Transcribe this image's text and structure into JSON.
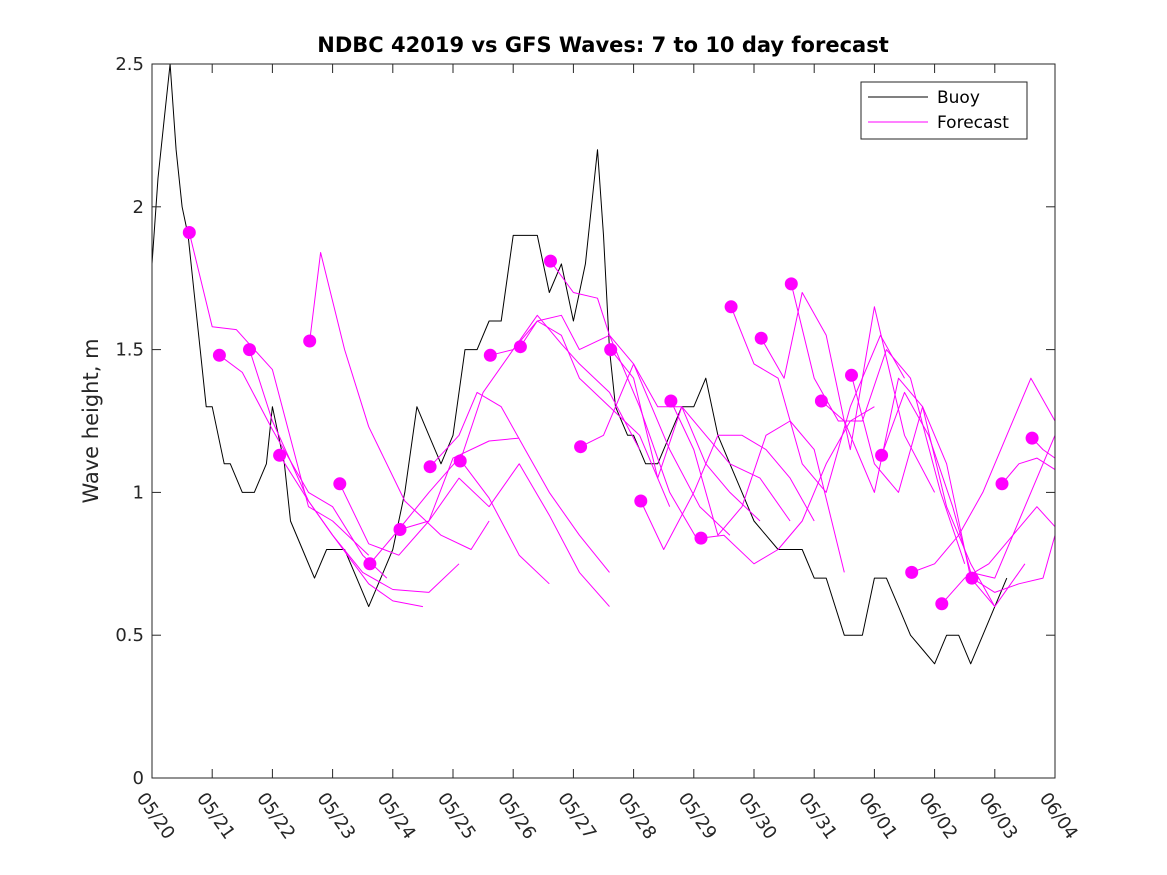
{
  "chart_data": {
    "type": "line",
    "title": "NDBC 42019 vs GFS Waves: 7 to 10 day forecast",
    "ylabel": "Wave height, m",
    "xlabel": "",
    "ylim": [
      0,
      2.5
    ],
    "xlim": [
      0,
      15
    ],
    "x_unit": "days since 05/20",
    "yticks": [
      0,
      0.5,
      1,
      1.5,
      2,
      2.5
    ],
    "ytick_labels": [
      "0",
      "0.5",
      "1",
      "1.5",
      "2",
      "2.5"
    ],
    "xticks": [
      0,
      1,
      2,
      3,
      4,
      5,
      6,
      7,
      8,
      9,
      10,
      11,
      12,
      13,
      14,
      15
    ],
    "xtick_labels": [
      "05/20",
      "05/21",
      "05/22",
      "05/23",
      "05/24",
      "05/25",
      "05/26",
      "05/27",
      "05/28",
      "05/29",
      "05/30",
      "05/31",
      "06/01",
      "06/02",
      "06/03",
      "06/04"
    ],
    "grid": false,
    "legend": {
      "placement": "top-right",
      "entries": [
        "Buoy",
        "Forecast"
      ]
    },
    "colors": {
      "buoy": "#000000",
      "forecast": "#ff00ff"
    },
    "series": [
      {
        "name": "Buoy",
        "x": [
          0,
          0.1,
          0.2,
          0.3,
          0.4,
          0.5,
          0.6,
          0.7,
          0.8,
          0.9,
          1.0,
          1.1,
          1.2,
          1.3,
          1.5,
          1.7,
          1.9,
          2.0,
          2.2,
          2.3,
          2.5,
          2.7,
          2.9,
          3.0,
          3.2,
          3.4,
          3.6,
          3.8,
          4.0,
          4.2,
          4.4,
          4.6,
          4.8,
          5.0,
          5.2,
          5.4,
          5.6,
          5.8,
          6.0,
          6.2,
          6.4,
          6.6,
          6.8,
          7.0,
          7.2,
          7.4,
          7.5,
          7.6,
          7.7,
          7.9,
          8.0,
          8.2,
          8.4,
          8.6,
          8.8,
          9.0,
          9.2,
          9.4,
          9.6,
          9.8,
          10.0,
          10.2,
          10.4,
          10.6,
          10.8,
          11.0,
          11.2,
          11.5,
          11.8,
          12.0,
          12.2,
          12.4,
          12.6,
          12.8,
          13.0,
          13.2,
          13.4,
          13.6,
          13.8,
          14.0,
          14.2
        ],
        "values": [
          1.8,
          2.1,
          2.3,
          2.5,
          2.2,
          2.0,
          1.9,
          1.7,
          1.5,
          1.3,
          1.3,
          1.2,
          1.1,
          1.1,
          1.0,
          1.0,
          1.1,
          1.3,
          1.1,
          0.9,
          0.8,
          0.7,
          0.8,
          0.8,
          0.8,
          0.7,
          0.6,
          0.7,
          0.8,
          1.0,
          1.3,
          1.2,
          1.1,
          1.2,
          1.5,
          1.5,
          1.6,
          1.6,
          1.9,
          1.9,
          1.9,
          1.7,
          1.8,
          1.6,
          1.8,
          2.2,
          1.9,
          1.5,
          1.3,
          1.2,
          1.2,
          1.1,
          1.1,
          1.2,
          1.3,
          1.3,
          1.4,
          1.2,
          1.1,
          1.0,
          0.9,
          0.85,
          0.8,
          0.8,
          0.8,
          0.7,
          0.7,
          0.5,
          0.5,
          0.7,
          0.7,
          0.6,
          0.5,
          0.45,
          0.4,
          0.5,
          0.5,
          0.4,
          0.5,
          0.6,
          0.7
        ]
      },
      {
        "name": "Forecast",
        "x": [
          0.62,
          1.0,
          1.4,
          2.0,
          2.6,
          3.0,
          3.6
        ],
        "values": [
          1.91,
          1.58,
          1.57,
          1.43,
          0.95,
          0.9,
          0.78
        ]
      },
      {
        "name": "Forecast",
        "x": [
          1.12,
          1.5,
          2.0,
          2.6,
          3.0,
          3.5,
          3.9
        ],
        "values": [
          1.48,
          1.42,
          1.22,
          1.0,
          0.95,
          0.78,
          0.7
        ]
      },
      {
        "name": "Forecast",
        "x": [
          1.62,
          2.0,
          2.6,
          3.0,
          3.6,
          4.0,
          4.5
        ],
        "values": [
          1.5,
          1.25,
          0.97,
          0.85,
          0.68,
          0.62,
          0.6
        ]
      },
      {
        "name": "Forecast",
        "x": [
          2.12,
          2.6,
          3.0,
          3.5,
          4.0,
          4.6,
          5.1
        ],
        "values": [
          1.13,
          0.97,
          0.85,
          0.72,
          0.66,
          0.65,
          0.75
        ]
      },
      {
        "name": "Forecast",
        "x": [
          2.62,
          2.8,
          3.2,
          3.6,
          4.2,
          4.8,
          5.3,
          5.6
        ],
        "values": [
          1.53,
          1.84,
          1.5,
          1.23,
          0.97,
          0.85,
          0.8,
          0.9
        ]
      },
      {
        "name": "Forecast",
        "x": [
          3.12,
          3.6,
          4.1,
          4.6,
          5.0,
          5.6,
          6.1
        ],
        "values": [
          1.03,
          0.82,
          0.78,
          0.9,
          1.12,
          1.18,
          1.19
        ]
      },
      {
        "name": "Forecast",
        "x": [
          3.62,
          4.1,
          4.6,
          5.1,
          5.6,
          6.1,
          6.6
        ],
        "values": [
          0.75,
          0.87,
          1.0,
          1.12,
          0.98,
          0.78,
          0.68
        ]
      },
      {
        "name": "Forecast",
        "x": [
          4.12,
          4.6,
          5.1,
          5.6,
          6.1,
          6.6,
          7.1,
          7.6
        ],
        "values": [
          0.87,
          0.9,
          1.05,
          0.95,
          1.1,
          0.92,
          0.72,
          0.6
        ]
      },
      {
        "name": "Forecast",
        "x": [
          4.62,
          5.1,
          5.4,
          5.8,
          6.2,
          6.6,
          7.1,
          7.6
        ],
        "values": [
          1.09,
          1.2,
          1.35,
          1.3,
          1.15,
          1.0,
          0.85,
          0.72
        ]
      },
      {
        "name": "Forecast",
        "x": [
          5.12,
          5.5,
          6.0,
          6.4,
          6.8,
          7.1,
          7.6,
          8.1
        ],
        "values": [
          1.11,
          1.35,
          1.5,
          1.62,
          1.52,
          1.45,
          1.35,
          1.15
        ]
      },
      {
        "name": "Forecast",
        "x": [
          5.62,
          6.0,
          6.4,
          6.8,
          7.1,
          7.6,
          8.1,
          8.6
        ],
        "values": [
          1.48,
          1.5,
          1.6,
          1.55,
          1.4,
          1.3,
          1.2,
          0.95
        ]
      },
      {
        "name": "Forecast",
        "x": [
          6.12,
          6.4,
          6.8,
          7.1,
          7.6,
          8.1,
          8.6,
          9.1
        ],
        "values": [
          1.51,
          1.6,
          1.62,
          1.5,
          1.55,
          1.3,
          1.0,
          0.82
        ]
      },
      {
        "name": "Forecast",
        "x": [
          6.62,
          7.0,
          7.4,
          7.6,
          8.0,
          8.6,
          9.1,
          9.6
        ],
        "values": [
          1.81,
          1.7,
          1.68,
          1.55,
          1.45,
          1.15,
          0.95,
          0.85
        ]
      },
      {
        "name": "Forecast",
        "x": [
          7.12,
          7.5,
          8.0,
          8.4,
          8.8,
          9.2,
          9.6,
          10.1
        ],
        "values": [
          1.16,
          1.2,
          1.45,
          1.3,
          1.3,
          1.1,
          1.0,
          0.9
        ]
      },
      {
        "name": "Forecast",
        "x": [
          7.62,
          8.0,
          8.4,
          8.8,
          9.2,
          9.6,
          10.1,
          10.6
        ],
        "values": [
          1.5,
          1.4,
          1.05,
          1.3,
          1.2,
          1.1,
          1.05,
          0.9
        ]
      },
      {
        "name": "Forecast",
        "x": [
          8.12,
          8.5,
          9.0,
          9.4,
          9.8,
          10.2,
          10.6,
          11.0
        ],
        "values": [
          0.97,
          0.8,
          1.0,
          1.2,
          1.2,
          1.15,
          1.05,
          0.9
        ]
      },
      {
        "name": "Forecast",
        "x": [
          8.62,
          9.0,
          9.4,
          9.8,
          10.2,
          10.6,
          11.0,
          11.5
        ],
        "values": [
          1.32,
          1.15,
          0.85,
          0.95,
          1.2,
          1.25,
          1.15,
          0.72
        ]
      },
      {
        "name": "Forecast",
        "x": [
          9.12,
          9.5,
          10.0,
          10.4,
          10.8,
          11.2,
          11.6,
          12.0
        ],
        "values": [
          0.84,
          0.85,
          0.75,
          0.8,
          0.9,
          1.1,
          1.25,
          1.3
        ]
      },
      {
        "name": "Forecast",
        "x": [
          9.62,
          10.0,
          10.4,
          10.8,
          11.2,
          11.6,
          12.1,
          12.5
        ],
        "values": [
          1.65,
          1.45,
          1.4,
          1.1,
          1.0,
          1.3,
          1.55,
          1.4
        ]
      },
      {
        "name": "Forecast",
        "x": [
          10.12,
          10.5,
          10.8,
          11.2,
          11.6,
          12.0,
          12.5,
          13.0
        ],
        "values": [
          1.54,
          1.4,
          1.7,
          1.55,
          1.15,
          1.65,
          1.2,
          1.0
        ]
      },
      {
        "name": "Forecast",
        "x": [
          10.62,
          11.0,
          11.4,
          11.8,
          12.2,
          12.6,
          13.1,
          13.5
        ],
        "values": [
          1.73,
          1.4,
          1.25,
          1.25,
          1.5,
          1.4,
          1.0,
          0.75
        ]
      },
      {
        "name": "Forecast",
        "x": [
          11.12,
          11.5,
          12.0,
          12.4,
          12.8,
          13.2,
          13.6,
          14.0
        ],
        "values": [
          1.32,
          1.25,
          1.0,
          1.4,
          1.3,
          0.95,
          0.75,
          0.6
        ]
      },
      {
        "name": "Forecast",
        "x": [
          11.62,
          12.0,
          12.4,
          12.8,
          13.2,
          13.6,
          14.0,
          14.5
        ],
        "values": [
          1.41,
          1.1,
          1.0,
          1.3,
          1.1,
          0.7,
          0.6,
          0.75
        ]
      },
      {
        "name": "Forecast",
        "x": [
          12.12,
          12.5,
          12.9,
          13.3,
          13.6,
          14.0,
          14.5,
          15.0
        ],
        "values": [
          1.13,
          1.35,
          1.2,
          0.95,
          0.72,
          0.7,
          0.95,
          1.2
        ]
      },
      {
        "name": "Forecast",
        "x": [
          12.62,
          13.0,
          13.4,
          13.8,
          14.2,
          14.6,
          15.0
        ],
        "values": [
          0.72,
          0.75,
          0.85,
          1.0,
          1.2,
          1.4,
          1.25
        ]
      },
      {
        "name": "Forecast",
        "x": [
          13.12,
          13.5,
          13.9,
          14.3,
          14.7,
          15.0
        ],
        "values": [
          0.61,
          0.7,
          0.75,
          0.85,
          0.95,
          0.88
        ]
      },
      {
        "name": "Forecast",
        "x": [
          13.62,
          14.0,
          14.4,
          14.8,
          15.0
        ],
        "values": [
          0.7,
          0.65,
          0.68,
          0.7,
          0.85
        ]
      },
      {
        "name": "Forecast",
        "x": [
          14.12,
          14.4,
          14.7,
          15.0
        ],
        "values": [
          1.03,
          1.1,
          1.12,
          1.08
        ]
      },
      {
        "name": "Forecast",
        "x": [
          14.62,
          14.8,
          15.0
        ],
        "values": [
          1.19,
          1.15,
          1.12
        ]
      }
    ]
  }
}
